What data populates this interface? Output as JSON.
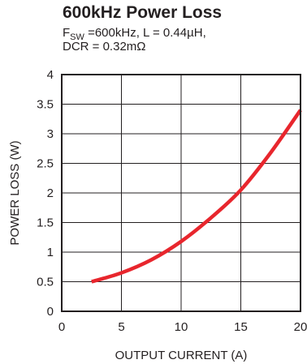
{
  "chart_data": {
    "type": "line",
    "title": "600kHz Power Loss",
    "subtitle": {
      "line1_prefix": "F",
      "line1_subscript": "SW",
      "line1_rest": " =600kHz, L = 0.44µH,",
      "line2": "DCR = 0.32mΩ"
    },
    "xlabel": "OUTPUT CURRENT (A)",
    "ylabel": "POWER LOSS (W)",
    "xlim": [
      0,
      20
    ],
    "ylim": [
      0,
      4
    ],
    "xticks": [
      "0",
      "5",
      "10",
      "15",
      "20"
    ],
    "yticks": [
      "0",
      "0.5",
      "1",
      "1.5",
      "2",
      "2.5",
      "3",
      "3.5",
      "4"
    ],
    "grid": true,
    "series": [
      {
        "color": "#e8262d",
        "x": [
          2.5,
          5,
          7.5,
          10,
          12.5,
          15,
          17.5,
          20
        ],
        "y": [
          0.5,
          0.65,
          0.87,
          1.18,
          1.58,
          2.05,
          2.68,
          3.4
        ]
      }
    ]
  }
}
